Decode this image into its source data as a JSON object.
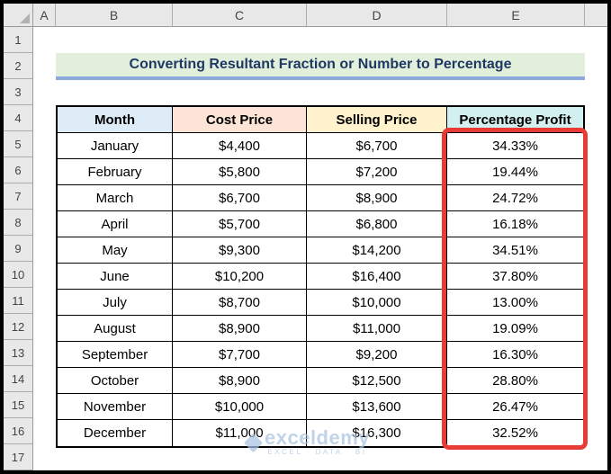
{
  "spreadsheet": {
    "column_headers": [
      "A",
      "B",
      "C",
      "D",
      "E",
      ""
    ],
    "row_numbers": [
      "1",
      "2",
      "3",
      "4",
      "5",
      "6",
      "7",
      "8",
      "9",
      "10",
      "11",
      "12",
      "13",
      "14",
      "15",
      "16",
      "17"
    ]
  },
  "title": {
    "text": "Converting Resultant Fraction or Number to Percentage",
    "bg": "#E2EFDA",
    "color": "#1F3864",
    "underline_color": "#8EAADC"
  },
  "table": {
    "headers": [
      {
        "label": "Month",
        "bg": "#DDEBF7"
      },
      {
        "label": "Cost Price",
        "bg": "#FCE4D6"
      },
      {
        "label": "Selling Price",
        "bg": "#FFF2CC"
      },
      {
        "label": "Percentage Profit",
        "bg": "#D2F0F0"
      }
    ],
    "rows": [
      {
        "month": "January",
        "cost": "$4,400",
        "selling": "$6,700",
        "profit": "34.33%"
      },
      {
        "month": "February",
        "cost": "$5,800",
        "selling": "$7,200",
        "profit": "19.44%"
      },
      {
        "month": "March",
        "cost": "$6,700",
        "selling": "$8,900",
        "profit": "24.72%"
      },
      {
        "month": "April",
        "cost": "$5,700",
        "selling": "$6,800",
        "profit": "16.18%"
      },
      {
        "month": "May",
        "cost": "$9,300",
        "selling": "$14,200",
        "profit": "34.51%"
      },
      {
        "month": "June",
        "cost": "$10,200",
        "selling": "$16,400",
        "profit": "37.80%"
      },
      {
        "month": "July",
        "cost": "$8,700",
        "selling": "$10,000",
        "profit": "13.00%"
      },
      {
        "month": "August",
        "cost": "$8,900",
        "selling": "$11,000",
        "profit": "19.09%"
      },
      {
        "month": "September",
        "cost": "$7,700",
        "selling": "$9,200",
        "profit": "16.30%"
      },
      {
        "month": "October",
        "cost": "$8,900",
        "selling": "$12,500",
        "profit": "28.80%"
      },
      {
        "month": "November",
        "cost": "$10,000",
        "selling": "$13,600",
        "profit": "26.47%"
      },
      {
        "month": "December",
        "cost": "$11,000",
        "selling": "$16,300",
        "profit": "32.52%"
      }
    ]
  },
  "highlight": {
    "border_color": "#E83B36"
  },
  "watermark": {
    "name": "exceldemy",
    "tagline": "EXCEL · DATA · BI"
  }
}
